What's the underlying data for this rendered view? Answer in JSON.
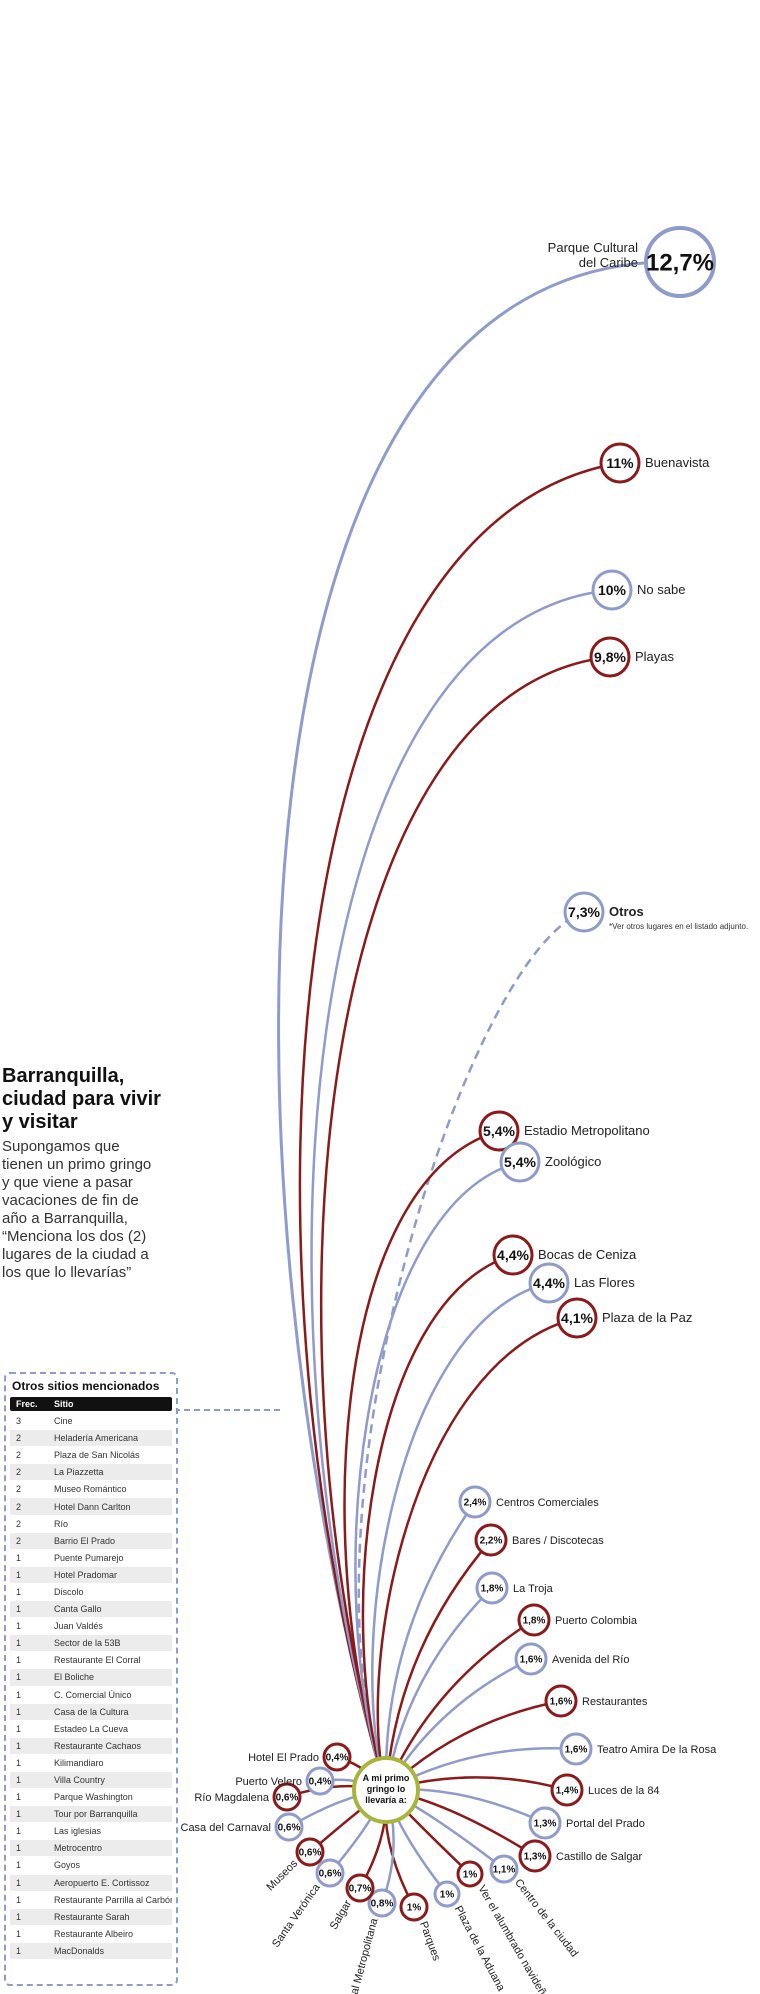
{
  "intro": {
    "title": "Barranquilla, ciudad para vivir y visitar",
    "question": "Supongamos que tienen un primo gringo y que viene a pasar vacaciones de fin de año a Barranquilla, “Menciona los dos (2) lugares de la ciudad a los que lo llevarías”"
  },
  "hub_label": [
    "A mi primo",
    "gringo lo",
    "llevaría a:"
  ],
  "colors": {
    "blue": "#8e9bcb",
    "red": "#8b1a1a",
    "hub_ring": "#a8b43a",
    "text": "#222222"
  },
  "places": [
    {
      "name": "Parque Cultural del Caribe",
      "value": "12,7%",
      "color": "blue"
    },
    {
      "name": "Buenavista",
      "value": "11%",
      "color": "red"
    },
    {
      "name": "No sabe",
      "value": "10%",
      "color": "blue"
    },
    {
      "name": "Playas",
      "value": "9,8%",
      "color": "red"
    },
    {
      "name": "Otros",
      "value": "7,3%",
      "color": "blue",
      "dashed": true,
      "note": "*Ver otros lugares en el listado adjunto."
    },
    {
      "name": "Estadio Metropolitano",
      "value": "5,4%",
      "color": "red"
    },
    {
      "name": "Zoológico",
      "value": "5,4%",
      "color": "blue"
    },
    {
      "name": "Bocas de Ceniza",
      "value": "4,4%",
      "color": "red"
    },
    {
      "name": "Las Flores",
      "value": "4,4%",
      "color": "blue"
    },
    {
      "name": "Plaza de la Paz",
      "value": "4,1%",
      "color": "red"
    },
    {
      "name": "Centros Comerciales",
      "value": "2,4%",
      "color": "blue"
    },
    {
      "name": "Bares / Discotecas",
      "value": "2,2%",
      "color": "red"
    },
    {
      "name": "La Troja",
      "value": "1,8%",
      "color": "blue"
    },
    {
      "name": "Puerto Colombia",
      "value": "1,8%",
      "color": "red"
    },
    {
      "name": "Avenida del Río",
      "value": "1,6%",
      "color": "blue"
    },
    {
      "name": "Restaurantes",
      "value": "1,6%",
      "color": "red"
    },
    {
      "name": "Teatro Amira De la Rosa",
      "value": "1,6%",
      "color": "blue"
    },
    {
      "name": "Luces de la 84",
      "value": "1,4%",
      "color": "red"
    },
    {
      "name": "Portal del Prado",
      "value": "1,3%",
      "color": "blue"
    },
    {
      "name": "Castillo de Salgar",
      "value": "1,3%",
      "color": "red"
    },
    {
      "name": "Centro de la ciudad",
      "value": "1,1%",
      "color": "blue"
    },
    {
      "name": "Ver el alumbrado navideño",
      "value": "1%",
      "color": "red"
    },
    {
      "name": "Plaza de la Aduana",
      "value": "1%",
      "color": "blue"
    },
    {
      "name": "Parques",
      "value": "1%",
      "color": "red"
    },
    {
      "name": "Catedral Metropolitana",
      "value": "0,8%",
      "color": "blue"
    },
    {
      "name": "Salgar",
      "value": "0,7%",
      "color": "red"
    },
    {
      "name": "Santa Verónica",
      "value": "0,6%",
      "color": "blue"
    },
    {
      "name": "Museos",
      "value": "0,6%",
      "color": "red"
    },
    {
      "name": "Casa del Carnaval",
      "value": "0,6%",
      "color": "blue"
    },
    {
      "name": "Río Magdalena",
      "value": "0,6%",
      "color": "red"
    },
    {
      "name": "Puerto Velero",
      "value": "0,4%",
      "color": "blue"
    },
    {
      "name": "Hotel El Prado",
      "value": "0,4%",
      "color": "red"
    }
  ],
  "others": {
    "title": "Otros sitios mencionados",
    "col_freq": "Frec.",
    "col_site": "Sitio",
    "rows": [
      {
        "freq": "3",
        "site": "Cine"
      },
      {
        "freq": "2",
        "site": "Heladería Americana"
      },
      {
        "freq": "2",
        "site": "Plaza de San Nicolás"
      },
      {
        "freq": "2",
        "site": "La Piazzetta"
      },
      {
        "freq": "2",
        "site": "Museo Romántico"
      },
      {
        "freq": "2",
        "site": "Hotel Dann Carlton"
      },
      {
        "freq": "2",
        "site": "Río"
      },
      {
        "freq": "2",
        "site": "Barrio El Prado"
      },
      {
        "freq": "1",
        "site": "Puente Pumarejo"
      },
      {
        "freq": "1",
        "site": "Hotel Pradomar"
      },
      {
        "freq": "1",
        "site": "Discolo"
      },
      {
        "freq": "1",
        "site": "Canta Gallo"
      },
      {
        "freq": "1",
        "site": "Juan Valdés"
      },
      {
        "freq": "1",
        "site": "Sector de la 53B"
      },
      {
        "freq": "1",
        "site": "Restaurante El Corral"
      },
      {
        "freq": "1",
        "site": "El Boliche"
      },
      {
        "freq": "1",
        "site": "C. Comercial Único"
      },
      {
        "freq": "1",
        "site": "Casa de la Cultura"
      },
      {
        "freq": "1",
        "site": "Estadeo La Cueva"
      },
      {
        "freq": "1",
        "site": "Restaurante Cachaos"
      },
      {
        "freq": "1",
        "site": "Kilimandiaro"
      },
      {
        "freq": "1",
        "site": "Villa Country"
      },
      {
        "freq": "1",
        "site": "Parque Washington"
      },
      {
        "freq": "1",
        "site": "Tour por Barranquilla"
      },
      {
        "freq": "1",
        "site": "Las iglesias"
      },
      {
        "freq": "1",
        "site": "Metrocentro"
      },
      {
        "freq": "1",
        "site": "Goyos"
      },
      {
        "freq": "1",
        "site": "Aeropuerto E. Cortissoz"
      },
      {
        "freq": "1",
        "site": "Restaurante Parrilla al Carbón"
      },
      {
        "freq": "1",
        "site": "Restaurante Sarah"
      },
      {
        "freq": "1",
        "site": "Restaurante Albeiro"
      },
      {
        "freq": "1",
        "site": "MacDonalds"
      }
    ]
  }
}
